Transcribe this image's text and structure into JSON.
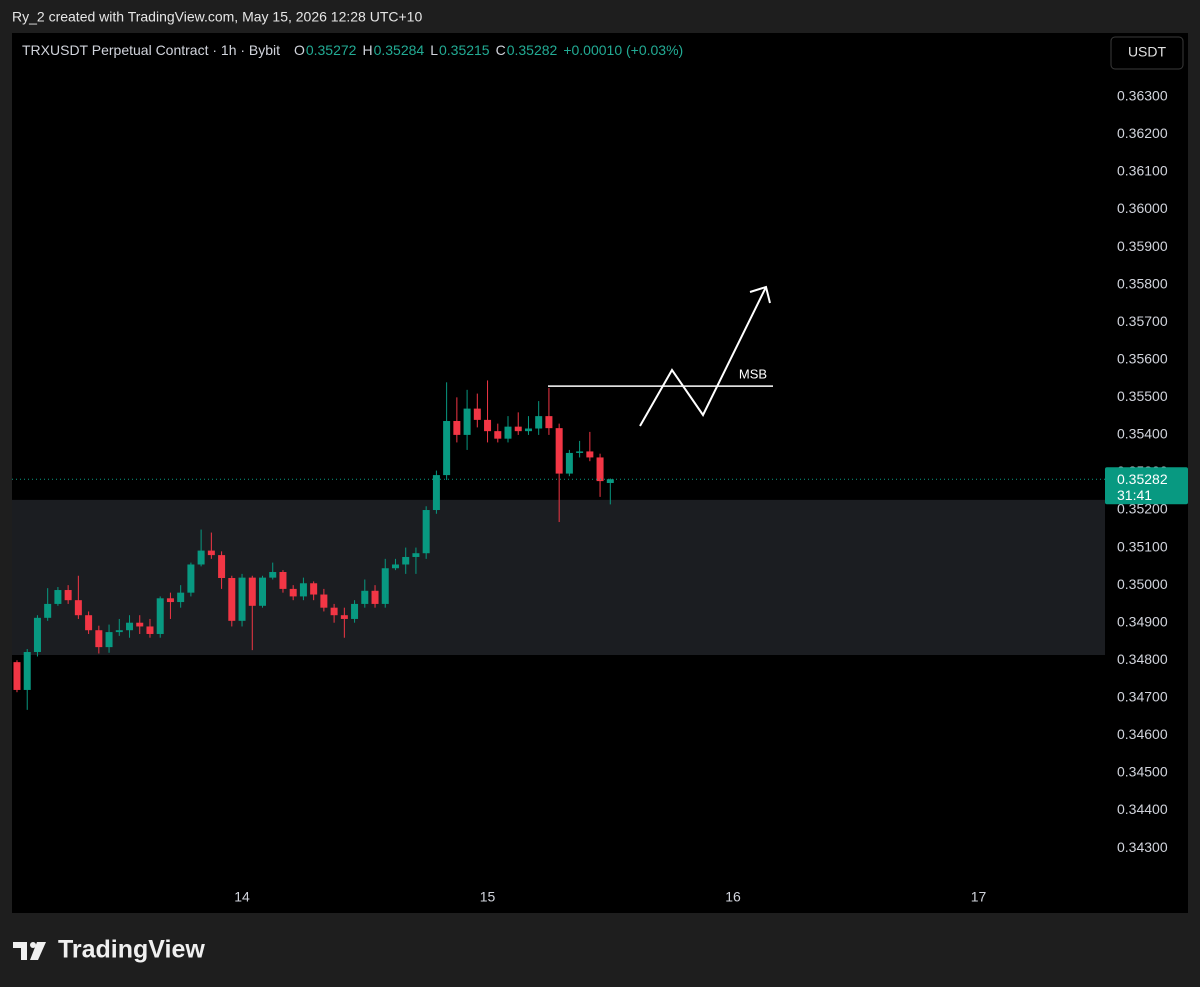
{
  "header": "Ry_2 created with TradingView.com, May 15, 2026 12:28 UTC+10",
  "footer": {
    "brand": "TradingView"
  },
  "chart_data": {
    "type": "candlestick",
    "legend": {
      "title": "TRXUSDT Perpetual Contract · 1h · Bybit",
      "items": [
        {
          "key": "O",
          "value": "0.35272"
        },
        {
          "key": "H",
          "value": "0.35284"
        },
        {
          "key": "L",
          "value": "0.35215"
        },
        {
          "key": "C",
          "value": "0.35282"
        }
      ],
      "change": "+0.00010 (+0.03%)"
    },
    "currency": "USDT",
    "x": [
      13.0833,
      13.125,
      13.1667,
      13.2083,
      13.25,
      13.2917,
      13.3333,
      13.375,
      13.4167,
      13.4583,
      13.5,
      13.5417,
      13.5833,
      13.625,
      13.6667,
      13.7083,
      13.75,
      13.7917,
      13.8333,
      13.875,
      13.9167,
      13.9583,
      14,
      14.0417,
      14.0833,
      14.125,
      14.1667,
      14.2083,
      14.25,
      14.2917,
      14.3333,
      14.375,
      14.4167,
      14.4583,
      14.5,
      14.5417,
      14.5833,
      14.625,
      14.6667,
      14.7083,
      14.75,
      14.7917,
      14.8333,
      14.875,
      14.9167,
      14.9583,
      15,
      15.0417,
      15.0833,
      15.125,
      15.1667,
      15.2083,
      15.25,
      15.2917,
      15.3333,
      15.375,
      15.4167,
      15.4583,
      15.5
    ],
    "open": [
      0.34795,
      0.34721,
      0.34822,
      0.34913,
      0.3495,
      0.34987,
      0.3496,
      0.3492,
      0.3488,
      0.34835,
      0.34875,
      0.3488,
      0.349,
      0.3489,
      0.3487,
      0.34965,
      0.34955,
      0.3498,
      0.35055,
      0.35092,
      0.3508,
      0.35019,
      0.34905,
      0.3502,
      0.34945,
      0.3502,
      0.35035,
      0.3499,
      0.3497,
      0.35005,
      0.34975,
      0.3494,
      0.3492,
      0.3491,
      0.3495,
      0.34985,
      0.3495,
      0.35045,
      0.35055,
      0.35075,
      0.35085,
      0.352,
      0.35293,
      0.35437,
      0.354,
      0.3547,
      0.3544,
      0.3541,
      0.3539,
      0.35422,
      0.3541,
      0.35417,
      0.3545,
      0.35418,
      0.35297,
      0.35352,
      0.35356,
      0.3534,
      0.35272
    ],
    "high": [
      0.348,
      0.3483,
      0.3492,
      0.34992,
      0.34995,
      0.35,
      0.35025,
      0.3493,
      0.34892,
      0.34895,
      0.3491,
      0.3492,
      0.3492,
      0.3491,
      0.3497,
      0.3498,
      0.35,
      0.3506,
      0.35148,
      0.3514,
      0.3509,
      0.35025,
      0.3503,
      0.35025,
      0.35025,
      0.3506,
      0.3504,
      0.35,
      0.3502,
      0.3501,
      0.3499,
      0.3495,
      0.3494,
      0.3496,
      0.35015,
      0.35,
      0.3507,
      0.3507,
      0.351,
      0.351,
      0.3521,
      0.35305,
      0.3554,
      0.355,
      0.3552,
      0.3551,
      0.35545,
      0.3543,
      0.3545,
      0.3546,
      0.3545,
      0.3549,
      0.35525,
      0.3543,
      0.3536,
      0.35384,
      0.35408,
      0.3535,
      0.35284
    ],
    "low": [
      0.34715,
      0.34668,
      0.3481,
      0.34905,
      0.34945,
      0.3495,
      0.3491,
      0.3487,
      0.34818,
      0.3482,
      0.34865,
      0.3486,
      0.3487,
      0.3486,
      0.3486,
      0.3491,
      0.3494,
      0.3497,
      0.3505,
      0.3507,
      0.3499,
      0.3489,
      0.3489,
      0.34827,
      0.3494,
      0.35015,
      0.3498,
      0.3496,
      0.3496,
      0.3496,
      0.3493,
      0.349,
      0.3486,
      0.349,
      0.3494,
      0.3494,
      0.3494,
      0.3504,
      0.3503,
      0.3503,
      0.3507,
      0.3519,
      0.3528,
      0.3538,
      0.3536,
      0.3542,
      0.3538,
      0.3538,
      0.3538,
      0.354,
      0.354,
      0.354,
      0.354,
      0.35168,
      0.3529,
      0.3534,
      0.3533,
      0.35235,
      0.35215
    ],
    "close": [
      0.34721,
      0.34822,
      0.34913,
      0.3495,
      0.34987,
      0.3496,
      0.3492,
      0.3488,
      0.34835,
      0.34875,
      0.3488,
      0.349,
      0.3489,
      0.3487,
      0.34965,
      0.34955,
      0.3498,
      0.35055,
      0.35092,
      0.3508,
      0.35019,
      0.34905,
      0.3502,
      0.34945,
      0.3502,
      0.35035,
      0.3499,
      0.3497,
      0.35005,
      0.34975,
      0.3494,
      0.3492,
      0.3491,
      0.3495,
      0.34985,
      0.3495,
      0.35045,
      0.35055,
      0.35075,
      0.35085,
      0.352,
      0.35293,
      0.35437,
      0.354,
      0.3547,
      0.3544,
      0.3541,
      0.3539,
      0.35422,
      0.3541,
      0.35417,
      0.3545,
      0.35418,
      0.35297,
      0.35352,
      0.35356,
      0.3534,
      0.35277,
      0.35282
    ],
    "up_color": "#089981",
    "down_color": "#f23645",
    "xlim": [
      13.063,
      17.515
    ],
    "xticks": [
      14,
      15,
      16,
      17
    ],
    "ylim": [
      0.34215,
      0.3647
    ],
    "yticks": [
      {
        "value": 0.343,
        "label": "0.34300"
      },
      {
        "value": 0.344,
        "label": "0.34400"
      },
      {
        "value": 0.345,
        "label": "0.34500"
      },
      {
        "value": 0.346,
        "label": "0.34600"
      },
      {
        "value": 0.347,
        "label": "0.34700"
      },
      {
        "value": 0.348,
        "label": "0.34800"
      },
      {
        "value": 0.349,
        "label": "0.34900"
      },
      {
        "value": 0.35,
        "label": "0.35000"
      },
      {
        "value": 0.351,
        "label": "0.35100"
      },
      {
        "value": 0.352,
        "label": "0.35200"
      },
      {
        "value": 0.353,
        "label": "0.35300"
      },
      {
        "value": 0.354,
        "label": "0.35400"
      },
      {
        "value": 0.355,
        "label": "0.35500"
      },
      {
        "value": 0.356,
        "label": "0.35600"
      },
      {
        "value": 0.357,
        "label": "0.35700"
      },
      {
        "value": 0.358,
        "label": "0.35800"
      },
      {
        "value": 0.359,
        "label": "0.35900"
      },
      {
        "value": 0.36,
        "label": "0.36000"
      },
      {
        "value": 0.361,
        "label": "0.36100"
      },
      {
        "value": 0.362,
        "label": "0.36200"
      },
      {
        "value": 0.363,
        "label": "0.36300"
      }
    ],
    "grid": false,
    "zone": [
      0.35227,
      0.34814
    ],
    "zone_color": "#1b1d21",
    "last_price": {
      "value": 0.35282,
      "label": "0.35282",
      "countdown": "31:41"
    },
    "annotations": [
      {
        "text": "MSB",
        "value": 0.3553
      }
    ]
  }
}
